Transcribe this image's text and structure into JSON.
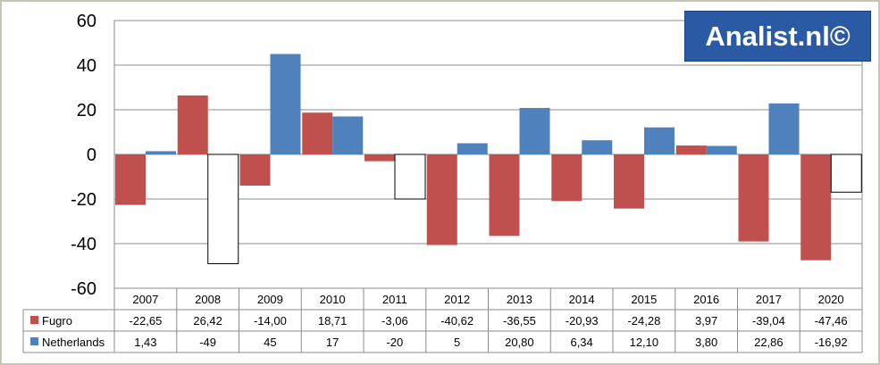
{
  "chart_data": {
    "type": "bar",
    "categories": [
      "2007",
      "2008",
      "2009",
      "2010",
      "2011",
      "2012",
      "2013",
      "2014",
      "2015",
      "2016",
      "2017",
      "2020"
    ],
    "ylim": [
      -60,
      60
    ],
    "yticks": [
      "60",
      "40",
      "20",
      "0",
      "-20",
      "-40",
      "-60"
    ],
    "grid": true,
    "series": [
      {
        "name": "Fugro",
        "color": "#c0504d",
        "values": [
          -22.65,
          26.42,
          -14.0,
          18.71,
          -3.06,
          -40.62,
          -36.55,
          -20.93,
          -24.28,
          3.97,
          -39.04,
          -47.46
        ],
        "labels": [
          "-22,65",
          "26,42",
          "-14,00",
          "18,71",
          "-3,06",
          "-40,62",
          "-36,55",
          "-20,93",
          "-24,28",
          "3,97",
          "-39,04",
          "-47,46"
        ]
      },
      {
        "name": "Netherlands",
        "color": "#4f81bd",
        "negative_fill": "#ffffff",
        "values": [
          1.43,
          -49,
          45,
          17,
          -20,
          5,
          20.8,
          6.34,
          12.1,
          3.8,
          22.86,
          -16.92
        ],
        "labels": [
          "1,43",
          "-49",
          "45",
          "17",
          "-20",
          "5",
          "20,80",
          "6,34",
          "12,10",
          "3,80",
          "22,86",
          "-16,92"
        ]
      }
    ]
  },
  "watermark": "Analist.nl©"
}
